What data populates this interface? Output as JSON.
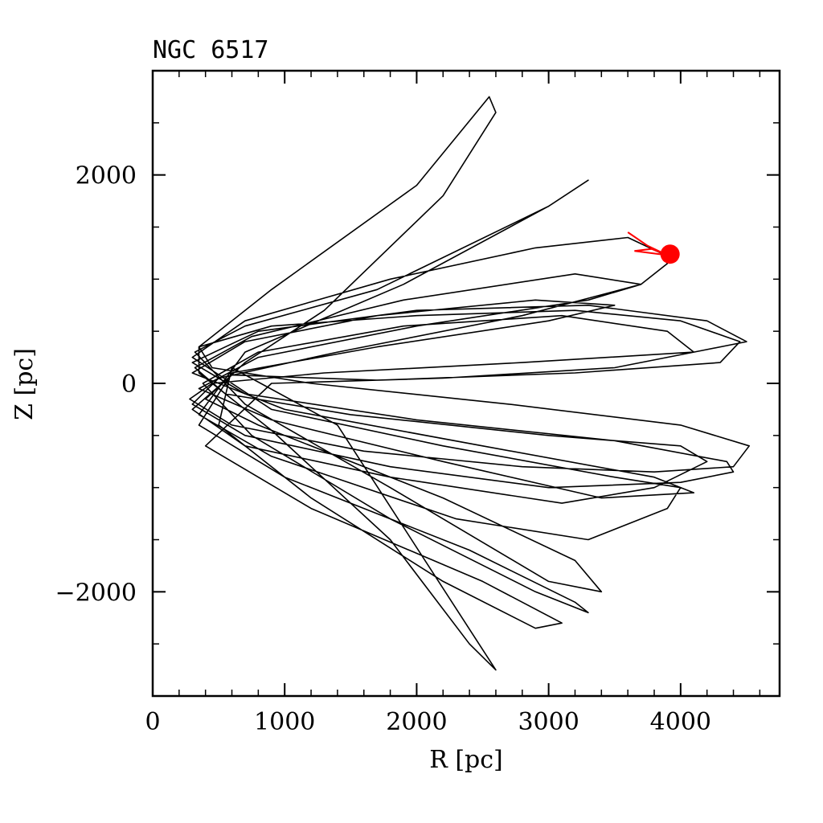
{
  "chart_data": {
    "type": "line",
    "title": "NGC 6517",
    "xlabel": "R [pc]",
    "ylabel": "Z [pc]",
    "xlim": [
      0,
      4750
    ],
    "ylim": [
      -3000,
      3000
    ],
    "x_ticks": [
      0,
      1000,
      2000,
      3000,
      4000
    ],
    "x_tick_labels": [
      "0",
      "1000",
      "2000",
      "3000",
      "4000"
    ],
    "y_ticks": [
      -2000,
      0,
      2000
    ],
    "y_tick_labels": [
      "−2000",
      "0",
      "2000"
    ],
    "x_minor_step": 200,
    "y_minor_step": 500,
    "grid": false,
    "orbit": {
      "color": "#000000",
      "points": [
        [
          600,
          150
        ],
        [
          1400,
          -400
        ],
        [
          2600,
          -2750
        ],
        [
          2400,
          -2500
        ],
        [
          1800,
          -1500
        ],
        [
          900,
          -450
        ],
        [
          350,
          100
        ],
        [
          350,
          350
        ],
        [
          900,
          900
        ],
        [
          2000,
          1900
        ],
        [
          2550,
          2750
        ],
        [
          2600,
          2600
        ],
        [
          2200,
          1800
        ],
        [
          1300,
          700
        ],
        [
          700,
          200
        ],
        [
          400,
          -150
        ],
        [
          800,
          -400
        ],
        [
          2200,
          -1100
        ],
        [
          3200,
          -1700
        ],
        [
          3400,
          -2000
        ],
        [
          3000,
          -1900
        ],
        [
          1800,
          -1000
        ],
        [
          700,
          -200
        ],
        [
          320,
          300
        ],
        [
          700,
          550
        ],
        [
          1700,
          900
        ],
        [
          3000,
          1700
        ],
        [
          3300,
          1950
        ],
        [
          3000,
          1700
        ],
        [
          1900,
          950
        ],
        [
          700,
          300
        ],
        [
          350,
          -300
        ],
        [
          900,
          -700
        ],
        [
          2300,
          -1300
        ],
        [
          3300,
          -1500
        ],
        [
          3900,
          -1200
        ],
        [
          4000,
          -1000
        ],
        [
          3500,
          -900
        ],
        [
          2200,
          -600
        ],
        [
          900,
          -250
        ],
        [
          300,
          250
        ],
        [
          700,
          600
        ],
        [
          1800,
          1000
        ],
        [
          2900,
          1300
        ],
        [
          3600,
          1400
        ],
        [
          3850,
          1250
        ],
        [
          3900,
          1150
        ],
        [
          3700,
          950
        ],
        [
          2800,
          650
        ],
        [
          1400,
          300
        ],
        [
          500,
          50
        ],
        [
          300,
          -200
        ],
        [
          700,
          -500
        ],
        [
          1800,
          -800
        ],
        [
          3000,
          -1000
        ],
        [
          4000,
          -950
        ],
        [
          4400,
          -850
        ],
        [
          4350,
          -750
        ],
        [
          3500,
          -550
        ],
        [
          2000,
          -350
        ],
        [
          700,
          -100
        ],
        [
          300,
          200
        ],
        [
          800,
          500
        ],
        [
          2000,
          700
        ],
        [
          3300,
          750
        ],
        [
          4200,
          600
        ],
        [
          4500,
          400
        ],
        [
          4100,
          300
        ],
        [
          2800,
          200
        ],
        [
          1300,
          100
        ],
        [
          450,
          0
        ],
        [
          280,
          -150
        ],
        [
          600,
          -400
        ],
        [
          1600,
          -650
        ],
        [
          2800,
          -800
        ],
        [
          3800,
          -850
        ],
        [
          4400,
          -800
        ],
        [
          4520,
          -600
        ],
        [
          4000,
          -400
        ],
        [
          2700,
          -200
        ],
        [
          1200,
          0
        ],
        [
          450,
          150
        ],
        [
          350,
          350
        ],
        [
          900,
          550
        ],
        [
          2000,
          650
        ],
        [
          3200,
          700
        ],
        [
          4000,
          600
        ],
        [
          4450,
          400
        ],
        [
          4300,
          200
        ],
        [
          3200,
          100
        ],
        [
          1700,
          30
        ],
        [
          600,
          80
        ],
        [
          300,
          -250
        ],
        [
          700,
          -600
        ],
        [
          1800,
          -900
        ],
        [
          3100,
          -1150
        ],
        [
          3800,
          -1000
        ],
        [
          4200,
          -750
        ],
        [
          4000,
          -600
        ],
        [
          3000,
          -500
        ],
        [
          1500,
          -300
        ],
        [
          550,
          -100
        ],
        [
          320,
          150
        ],
        [
          750,
          450
        ],
        [
          1900,
          800
        ],
        [
          3200,
          1050
        ],
        [
          3700,
          950
        ],
        [
          3300,
          800
        ],
        [
          2000,
          550
        ],
        [
          800,
          250
        ],
        [
          350,
          -50
        ],
        [
          900,
          -350
        ],
        [
          2200,
          -750
        ],
        [
          3400,
          -1100
        ],
        [
          4100,
          -1050
        ],
        [
          3800,
          -900
        ],
        [
          2500,
          -600
        ],
        [
          1000,
          -250
        ],
        [
          300,
          100
        ],
        [
          700,
          400
        ],
        [
          1700,
          650
        ],
        [
          2900,
          800
        ],
        [
          3500,
          750
        ],
        [
          3000,
          600
        ],
        [
          1700,
          350
        ],
        [
          600,
          100
        ],
        [
          350,
          -400
        ],
        [
          1000,
          -900
        ],
        [
          2400,
          -1600
        ],
        [
          3200,
          -2100
        ],
        [
          3300,
          -2200
        ],
        [
          2900,
          -2000
        ],
        [
          1800,
          -1300
        ],
        [
          750,
          -500
        ],
        [
          380,
          0
        ],
        [
          800,
          300
        ],
        [
          1900,
          550
        ],
        [
          3100,
          650
        ],
        [
          3900,
          500
        ],
        [
          4100,
          300
        ],
        [
          3500,
          150
        ],
        [
          2200,
          50
        ],
        [
          900,
          0
        ],
        [
          400,
          -600
        ],
        [
          1200,
          -1200
        ],
        [
          2500,
          -1900
        ],
        [
          3100,
          -2300
        ],
        [
          2900,
          -2350
        ],
        [
          2200,
          -1900
        ],
        [
          1200,
          -1100
        ],
        [
          500,
          -400
        ],
        [
          600,
          150
        ]
      ]
    },
    "track": {
      "color": "#ff0000",
      "points": [
        [
          3600,
          1450
        ],
        [
          3750,
          1320
        ],
        [
          3900,
          1230
        ],
        [
          3780,
          1290
        ],
        [
          3650,
          1270
        ],
        [
          3900,
          1230
        ]
      ]
    },
    "current_position": {
      "R": 3920,
      "Z": 1240,
      "color": "#ff0000"
    }
  }
}
